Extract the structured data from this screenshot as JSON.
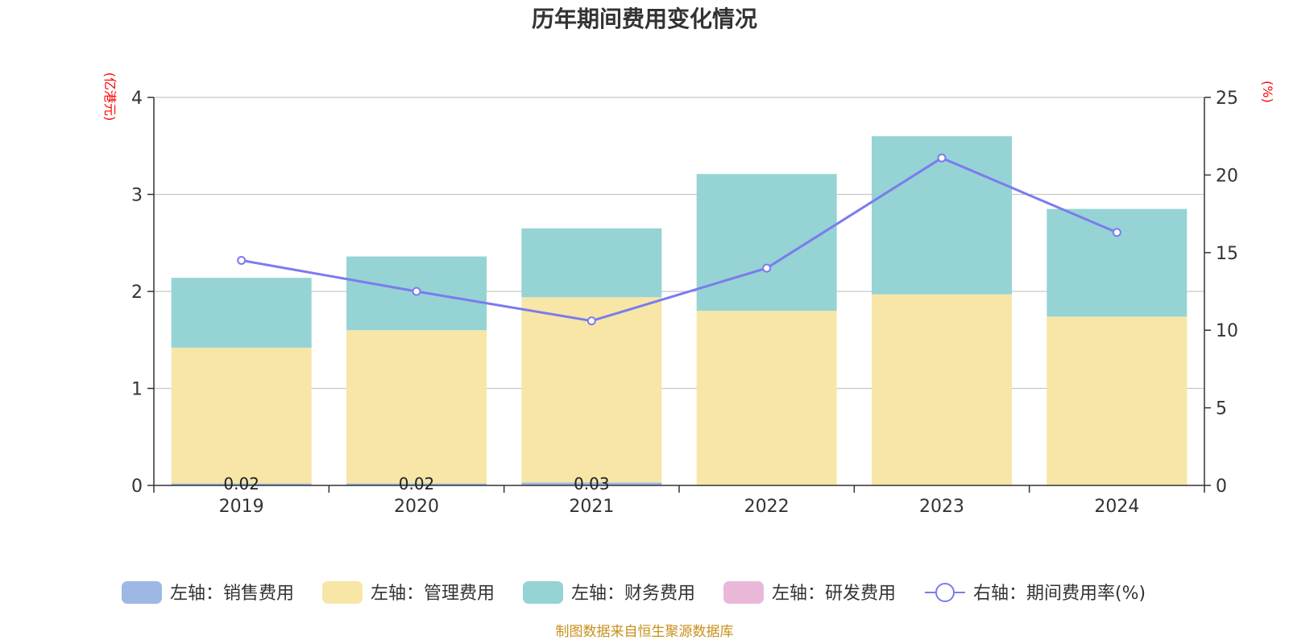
{
  "colors": {
    "selling": "#9db8e3",
    "admin": "#f7e6a6",
    "finance": "#96d3d4",
    "rnd": "#e9b8d9",
    "rate": "#7b7bef",
    "grid": "#c8c8c8",
    "axis": "#333333",
    "unit": "#ff0000",
    "source": "#c8901a"
  },
  "chart_data": {
    "type": "bar",
    "title": "历年期间费用变化情况",
    "categories": [
      "2019",
      "2020",
      "2021",
      "2022",
      "2023",
      "2024"
    ],
    "y_left": {
      "unit_label": "(亿港元)",
      "ylim": [
        0,
        4
      ],
      "ticks": [
        "0",
        "1",
        "2",
        "3",
        "4"
      ]
    },
    "y_right": {
      "unit_label": "(%)",
      "ylim": [
        0,
        25
      ],
      "ticks": [
        "0",
        "5",
        "10",
        "15",
        "20",
        "25"
      ]
    },
    "series": [
      {
        "name": "左轴：销售费用",
        "stack": true,
        "values": [
          0.02,
          0.02,
          0.03,
          0,
          0,
          0
        ],
        "data_labels": [
          "0.02",
          "0.02",
          "0.03",
          "",
          "",
          ""
        ]
      },
      {
        "name": "左轴：管理费用",
        "stack": true,
        "values": [
          1.4,
          1.58,
          1.91,
          1.8,
          1.97,
          1.74
        ]
      },
      {
        "name": "左轴：财务费用",
        "stack": true,
        "values": [
          0.72,
          0.76,
          0.71,
          1.41,
          1.63,
          1.11
        ]
      },
      {
        "name": "左轴：研发费用",
        "stack": true,
        "values": [
          0,
          0,
          0,
          0,
          0,
          0
        ]
      },
      {
        "name": "右轴：期间费用率(%)",
        "type": "line",
        "axis": "right",
        "values": [
          14.5,
          12.5,
          10.6,
          14.0,
          21.1,
          16.3
        ]
      }
    ],
    "grid": true,
    "legend_position": "bottom"
  },
  "source_text": "制图数据来自恒生聚源数据库"
}
